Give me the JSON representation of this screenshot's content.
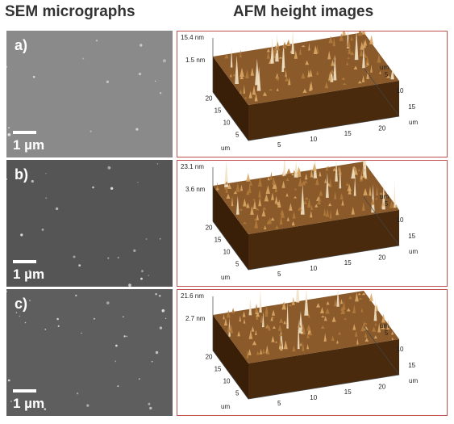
{
  "headers": {
    "sem": "SEM micrographs",
    "afm": "AFM height images"
  },
  "panels": [
    {
      "label": "a)",
      "scale_bar": "1 µm",
      "sem_tone": "#8a8a8a",
      "afm_z_top": "15.4 nm",
      "afm_z_mid": "1.5 nm",
      "afm_y_ticks": [
        "20",
        "15",
        "10",
        "5"
      ],
      "afm_y_unit": "um",
      "afm_x_ticks": [
        "5",
        "10",
        "15",
        "20"
      ],
      "afm_x_unit": "um",
      "afm_right_ticks": [
        "15",
        "10",
        "5"
      ],
      "afm_right_unit": "um"
    },
    {
      "label": "b)",
      "scale_bar": "1 µm",
      "sem_tone": "#555555",
      "afm_z_top": "23.1 nm",
      "afm_z_mid": "3.6 nm",
      "afm_y_ticks": [
        "20",
        "15",
        "10",
        "5"
      ],
      "afm_y_unit": "um",
      "afm_x_ticks": [
        "5",
        "10",
        "15",
        "20"
      ],
      "afm_x_unit": "um",
      "afm_right_ticks": [
        "15",
        "10",
        "5"
      ],
      "afm_right_unit": "um"
    },
    {
      "label": "c)",
      "scale_bar": "1 µm",
      "sem_tone": "#5e5e5e",
      "afm_z_top": "21.6 nm",
      "afm_z_mid": "2.7 nm",
      "afm_y_ticks": [
        "20",
        "15",
        "10",
        "5"
      ],
      "afm_y_unit": "um",
      "afm_x_ticks": [
        "5",
        "10",
        "15",
        "20"
      ],
      "afm_x_unit": "um",
      "afm_right_ticks": [
        "15",
        "10",
        "5"
      ],
      "afm_right_unit": "um"
    }
  ],
  "colors": {
    "afm_frame": "#c0504d",
    "afm_surface_dark": "#3a1f08",
    "afm_surface_mid": "#8b5a2b",
    "afm_surface_light": "#f2e2c4"
  }
}
